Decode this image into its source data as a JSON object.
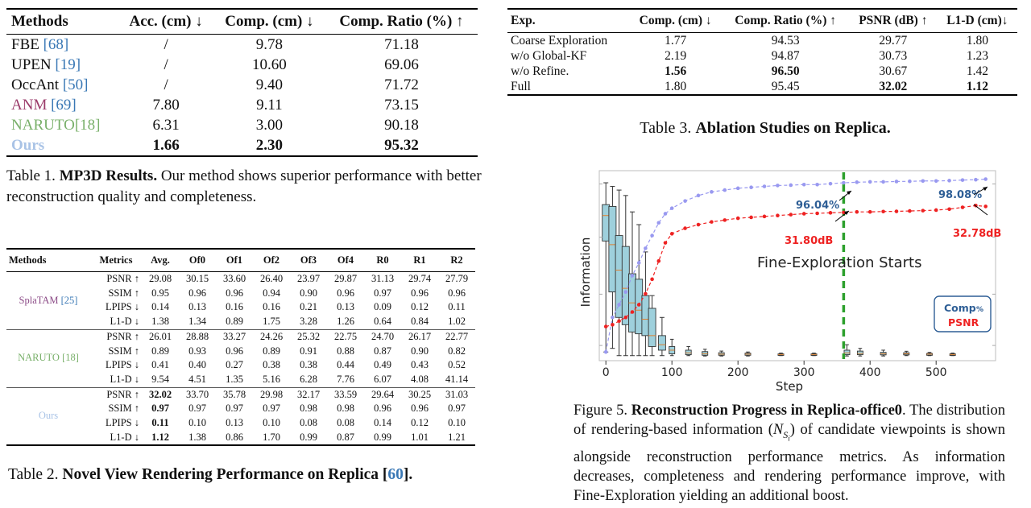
{
  "table1": {
    "headers": [
      "Methods",
      "Acc. (cm) ↓",
      "Comp. (cm) ↓",
      "Comp. Ratio (%) ↑"
    ],
    "rows": [
      {
        "name": "FBE ",
        "ref": "[68]",
        "acc": "/",
        "comp": "9.78",
        "ratio": "71.18"
      },
      {
        "name": "UPEN ",
        "ref": "[19]",
        "acc": "/",
        "comp": "10.60",
        "ratio": "69.06"
      },
      {
        "name": "OccAnt ",
        "ref": "[50]",
        "acc": "/",
        "comp": "9.40",
        "ratio": "71.72"
      },
      {
        "name": "ANM ",
        "ref": "[69]",
        "acc": "7.80",
        "comp": "9.11",
        "ratio": "73.15"
      },
      {
        "name": "NARUTO",
        "ref": "[18]",
        "acc": "6.31",
        "comp": "3.00",
        "ratio": "90.18"
      },
      {
        "name": "Ours",
        "ref": "",
        "acc": "1.66",
        "comp": "2.30",
        "ratio": "95.32"
      }
    ],
    "caption_label": "Table 1.",
    "caption_bold": "MP3D Results.",
    "caption_text": " Our method shows superior performance with better reconstruction quality and completeness."
  },
  "table2": {
    "headers": [
      "Methods",
      "Metrics",
      "Avg.",
      "Of0",
      "Of1",
      "Of2",
      "Of3",
      "Of4",
      "R0",
      "R1",
      "R2"
    ],
    "groups": [
      {
        "method": "SplaTAM ",
        "ref": "[25]",
        "rows": [
          {
            "metric": "PSNR ↑",
            "values": [
              "29.08",
              "30.15",
              "33.60",
              "26.40",
              "23.97",
              "29.87",
              "31.13",
              "29.74",
              "27.79"
            ]
          },
          {
            "metric": "SSIM ↑",
            "values": [
              "0.95",
              "0.96",
              "0.96",
              "0.94",
              "0.90",
              "0.96",
              "0.97",
              "0.96",
              "0.96"
            ]
          },
          {
            "metric": "LPIPS ↓",
            "values": [
              "0.14",
              "0.13",
              "0.16",
              "0.16",
              "0.21",
              "0.13",
              "0.09",
              "0.12",
              "0.11"
            ]
          },
          {
            "metric": "L1-D ↓",
            "values": [
              "1.38",
              "1.34",
              "0.89",
              "1.75",
              "3.28",
              "1.26",
              "0.64",
              "0.84",
              "1.02"
            ]
          }
        ]
      },
      {
        "method": "NARUTO ",
        "ref": "[18]",
        "rows": [
          {
            "metric": "PSNR ↑",
            "values": [
              "26.01",
              "28.88",
              "33.27",
              "24.26",
              "25.32",
              "22.75",
              "24.70",
              "26.17",
              "22.77"
            ]
          },
          {
            "metric": "SSIM ↑",
            "values": [
              "0.89",
              "0.93",
              "0.96",
              "0.89",
              "0.91",
              "0.88",
              "0.87",
              "0.90",
              "0.82"
            ]
          },
          {
            "metric": "LPIPS ↓",
            "values": [
              "0.41",
              "0.40",
              "0.27",
              "0.38",
              "0.38",
              "0.44",
              "0.49",
              "0.43",
              "0.52"
            ]
          },
          {
            "metric": "L1-D ↓",
            "values": [
              "9.54",
              "4.51",
              "1.35",
              "5.16",
              "6.28",
              "7.76",
              "6.07",
              "4.08",
              "41.14"
            ]
          }
        ]
      },
      {
        "method": "Ours",
        "ref": "",
        "rows": [
          {
            "metric": "PSNR ↑",
            "values": [
              "32.02",
              "33.70",
              "35.78",
              "29.98",
              "32.17",
              "33.59",
              "29.64",
              "30.25",
              "31.03"
            ]
          },
          {
            "metric": "SSIM ↑",
            "values": [
              "0.97",
              "0.97",
              "0.97",
              "0.97",
              "0.98",
              "0.98",
              "0.96",
              "0.96",
              "0.97"
            ]
          },
          {
            "metric": "LPIPS ↓",
            "values": [
              "0.11",
              "0.10",
              "0.13",
              "0.10",
              "0.08",
              "0.08",
              "0.14",
              "0.12",
              "0.10"
            ]
          },
          {
            "metric": "L1-D ↓",
            "values": [
              "1.12",
              "1.38",
              "0.86",
              "1.70",
              "0.99",
              "0.87",
              "0.99",
              "1.01",
              "1.21"
            ]
          }
        ]
      }
    ],
    "caption_label": "Table 2. ",
    "caption_bold": "Novel View Rendering Performance on Replica [",
    "caption_ref": "60",
    "caption_end": "]."
  },
  "table3": {
    "headers": [
      "Exp.",
      "Comp. (cm) ↓",
      "Comp. Ratio (%) ↑",
      "PSNR (dB) ↑",
      "L1-D (cm)↓"
    ],
    "rows": [
      {
        "exp": "Coarse Exploration",
        "comp": "1.77",
        "ratio": "94.53",
        "psnr": "29.77",
        "l1d": "1.80"
      },
      {
        "exp": "w/o Global-KF",
        "comp": "2.19",
        "ratio": "94.87",
        "psnr": "30.73",
        "l1d": "1.23"
      },
      {
        "exp": "w/o Refine.",
        "comp": "1.56",
        "ratio": "96.50",
        "psnr": "30.67",
        "l1d": "1.42"
      },
      {
        "exp": "Full",
        "comp": "1.80",
        "ratio": "95.45",
        "psnr": "32.02",
        "l1d": "1.12"
      }
    ],
    "caption_label": "Table 3. ",
    "caption_bold": "Ablation Studies on Replica."
  },
  "figure": {
    "caption_label": "Figure 5. ",
    "caption_bold": "Reconstruction Progress in Replica-office0",
    "caption_text1": ". The distribution of rendering-based information (",
    "caption_math": "N",
    "caption_sub": "S",
    "caption_subsub": "i",
    "caption_text2": ") of candidate viewpoints is shown alongside reconstruction performance metrics. As information decreases, completeness and rendering performance improve, with Fine-Exploration yielding an additional boost."
  },
  "chart_data": {
    "type": "line",
    "xlabel": "Step",
    "ylabel": "Information",
    "xlim": [
      -10,
      590
    ],
    "ylim": [
      0,
      1
    ],
    "x_ticks": [
      "0",
      "100",
      "200",
      "300",
      "400",
      "500"
    ],
    "x_tick_values": [
      0,
      100,
      200,
      300,
      400,
      500
    ],
    "series": [
      {
        "name": "Comp %",
        "color": "#9999f0",
        "x": [
          0,
          10,
          20,
          30,
          40,
          50,
          60,
          70,
          80,
          90,
          100,
          120,
          140,
          160,
          180,
          200,
          220,
          240,
          260,
          280,
          300,
          320,
          340,
          360,
          380,
          400,
          420,
          440,
          460,
          480,
          500,
          520,
          540,
          560,
          575
        ],
        "y": [
          0.03,
          0.22,
          0.29,
          0.36,
          0.45,
          0.52,
          0.6,
          0.67,
          0.74,
          0.79,
          0.82,
          0.86,
          0.89,
          0.91,
          0.92,
          0.93,
          0.935,
          0.94,
          0.945,
          0.947,
          0.95,
          0.95,
          0.955,
          0.96,
          0.963,
          0.965,
          0.965,
          0.967,
          0.968,
          0.97,
          0.97,
          0.972,
          0.975,
          0.977,
          0.98
        ]
      },
      {
        "name": "PSNR",
        "color": "#ee2222",
        "x": [
          0,
          10,
          20,
          30,
          40,
          50,
          60,
          70,
          80,
          90,
          100,
          120,
          140,
          160,
          180,
          200,
          220,
          240,
          260,
          280,
          300,
          320,
          340,
          360,
          380,
          400,
          420,
          440,
          460,
          480,
          500,
          520,
          540,
          560,
          575
        ],
        "y": [
          0.17,
          0.18,
          0.2,
          0.22,
          0.25,
          0.29,
          0.35,
          0.43,
          0.53,
          0.63,
          0.68,
          0.71,
          0.73,
          0.745,
          0.755,
          0.765,
          0.77,
          0.775,
          0.78,
          0.785,
          0.79,
          0.792,
          0.795,
          0.797,
          0.8,
          0.8,
          0.802,
          0.803,
          0.805,
          0.807,
          0.81,
          0.815,
          0.825,
          0.835,
          0.83
        ]
      }
    ],
    "boxes": {
      "color": "#9ed0dc",
      "items": [
        {
          "x": 0,
          "q1": 0.64,
          "med": 0.78,
          "q3": 0.84,
          "min": 0.03,
          "max": 0.96
        },
        {
          "x": 10,
          "q1": 0.36,
          "med": 0.62,
          "q3": 0.83,
          "min": 0.05,
          "max": 0.94
        },
        {
          "x": 20,
          "q1": 0.22,
          "med": 0.48,
          "q3": 0.67,
          "min": 0.01,
          "max": 0.92
        },
        {
          "x": 30,
          "q1": 0.18,
          "med": 0.38,
          "q3": 0.61,
          "min": 0.01,
          "max": 0.89
        },
        {
          "x": 40,
          "q1": 0.14,
          "med": 0.3,
          "q3": 0.46,
          "min": 0.01,
          "max": 0.8
        },
        {
          "x": 50,
          "q1": 0.13,
          "med": 0.26,
          "q3": 0.43,
          "min": 0.01,
          "max": 0.73
        },
        {
          "x": 60,
          "q1": 0.12,
          "med": 0.21,
          "q3": 0.34,
          "min": 0.01,
          "max": 0.58
        },
        {
          "x": 70,
          "q1": 0.06,
          "med": 0.12,
          "q3": 0.27,
          "min": 0.01,
          "max": 0.34
        },
        {
          "x": 85,
          "q1": 0.04,
          "med": 0.07,
          "q3": 0.12,
          "min": 0.01,
          "max": 0.22
        },
        {
          "x": 100,
          "q1": 0.02,
          "med": 0.04,
          "q3": 0.06,
          "min": 0.01,
          "max": 0.1
        },
        {
          "x": 125,
          "q1": 0.015,
          "med": 0.025,
          "q3": 0.04,
          "min": 0.01,
          "max": 0.06
        },
        {
          "x": 150,
          "q1": 0.012,
          "med": 0.02,
          "q3": 0.032,
          "min": 0.008,
          "max": 0.045
        },
        {
          "x": 175,
          "q1": 0.012,
          "med": 0.018,
          "q3": 0.026,
          "min": 0.008,
          "max": 0.035
        },
        {
          "x": 215,
          "q1": 0.012,
          "med": 0.018,
          "q3": 0.024,
          "min": 0.008,
          "max": 0.03
        },
        {
          "x": 265,
          "q1": 0.012,
          "med": 0.016,
          "q3": 0.02,
          "min": 0.01,
          "max": 0.024
        },
        {
          "x": 315,
          "q1": 0.012,
          "med": 0.016,
          "q3": 0.02,
          "min": 0.01,
          "max": 0.024
        },
        {
          "x": 365,
          "q1": 0.015,
          "med": 0.025,
          "q3": 0.04,
          "min": 0.008,
          "max": 0.07
        },
        {
          "x": 385,
          "q1": 0.015,
          "med": 0.022,
          "q3": 0.035,
          "min": 0.008,
          "max": 0.05
        },
        {
          "x": 420,
          "q1": 0.014,
          "med": 0.02,
          "q3": 0.028,
          "min": 0.008,
          "max": 0.04
        },
        {
          "x": 455,
          "q1": 0.014,
          "med": 0.02,
          "q3": 0.026,
          "min": 0.01,
          "max": 0.034
        },
        {
          "x": 490,
          "q1": 0.012,
          "med": 0.018,
          "q3": 0.022,
          "min": 0.01,
          "max": 0.028
        },
        {
          "x": 525,
          "q1": 0.012,
          "med": 0.016,
          "q3": 0.02,
          "min": 0.01,
          "max": 0.024
        }
      ]
    },
    "vline": {
      "x": 360,
      "color": "#2ca02c",
      "label": "Fine-Exploration Starts"
    },
    "annotations": [
      {
        "text": "96.04%",
        "color": "#2f5f96"
      },
      {
        "text": "98.08%",
        "color": "#2f5f96"
      },
      {
        "text": "31.80dB",
        "color": "#ee2222"
      },
      {
        "text": "32.78dB",
        "color": "#ee2222"
      }
    ],
    "legend": {
      "position": "bottom-right",
      "items": [
        {
          "text": "Comp",
          "suffix": "%",
          "color": "#2f5f96"
        },
        {
          "text": "PSNR",
          "color": "#ee2222"
        }
      ]
    },
    "grid": false
  }
}
